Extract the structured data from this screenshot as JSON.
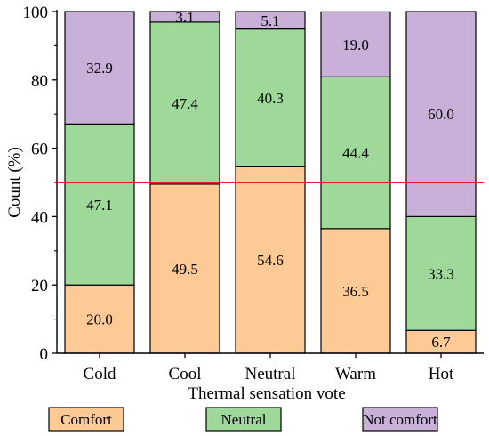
{
  "chart_data": {
    "type": "bar",
    "stacked": true,
    "categories": [
      "Cold",
      "Cool",
      "Neutral",
      "Warm",
      "Hot"
    ],
    "series": [
      {
        "name": "Comfort",
        "values": [
          20.0,
          49.5,
          54.6,
          36.5,
          6.7
        ],
        "labels": [
          "20.0",
          "49.5",
          "54.6",
          "36.5",
          "6.7"
        ],
        "color": "#fdc995"
      },
      {
        "name": "Neutral",
        "values": [
          47.1,
          47.4,
          40.3,
          44.4,
          33.3
        ],
        "labels": [
          "47.1",
          "47.4",
          "40.3",
          "44.4",
          "33.3"
        ],
        "color": "#9ed99a"
      },
      {
        "name": "Not comfort",
        "values": [
          32.9,
          3.1,
          5.1,
          19.0,
          60.0
        ],
        "labels": [
          "32.9",
          "3.1",
          "5.1",
          "19.0",
          "60.0"
        ],
        "color": "#c9b0d9"
      }
    ],
    "xlabel": "Thermal sensation vote",
    "ylabel": "Count (%)",
    "ylim": [
      0,
      100
    ],
    "yticks": [
      "0",
      "20",
      "40",
      "60",
      "80",
      "100"
    ],
    "reference_line": {
      "y": 50,
      "color": "#e01f1f"
    },
    "legend_position": "bottom",
    "grid": false
  }
}
